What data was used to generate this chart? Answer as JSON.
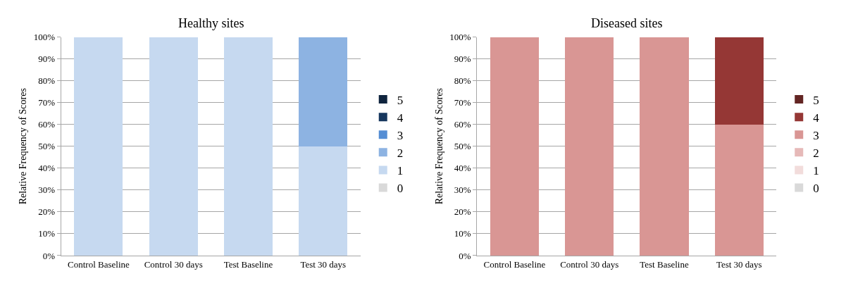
{
  "chart_data": [
    {
      "type": "bar",
      "title": "Healthy sites",
      "ylabel": "Relative Frequency of Scores",
      "categories": [
        "Control Baseline",
        "Control 30 days",
        "Test Baseline",
        "Test 30 days"
      ],
      "stacked": true,
      "legend": "right",
      "grid": "y",
      "ylim": [
        0,
        100
      ],
      "yticks": [
        {
          "value": 0,
          "label": "0%"
        },
        {
          "value": 10,
          "label": "10%"
        },
        {
          "value": 20,
          "label": "20%"
        },
        {
          "value": 30,
          "label": "30%"
        },
        {
          "value": 40,
          "label": "40%"
        },
        {
          "value": 50,
          "label": "50%"
        },
        {
          "value": 60,
          "label": "60%"
        },
        {
          "value": 70,
          "label": "70%"
        },
        {
          "value": 80,
          "label": "80%"
        },
        {
          "value": 90,
          "label": "90%"
        },
        {
          "value": 100,
          "label": "100%"
        }
      ],
      "series": [
        {
          "name": "0",
          "color": "#d9d9d9",
          "values": [
            0,
            0,
            0,
            0
          ]
        },
        {
          "name": "1",
          "color": "#c6d9f0",
          "values": [
            100,
            100,
            100,
            50
          ]
        },
        {
          "name": "2",
          "color": "#8db3e2",
          "values": [
            0,
            0,
            0,
            50
          ]
        },
        {
          "name": "3",
          "color": "#548dd4",
          "values": [
            0,
            0,
            0,
            0
          ]
        },
        {
          "name": "4",
          "color": "#17375e",
          "values": [
            0,
            0,
            0,
            0
          ]
        },
        {
          "name": "5",
          "color": "#0f243e",
          "values": [
            0,
            0,
            0,
            0
          ]
        }
      ]
    },
    {
      "type": "bar",
      "title": "Diseased sites",
      "ylabel": "Relative Frequency of Scores",
      "categories": [
        "Control Baseline",
        "Control 30 days",
        "Test Baseline",
        "Test 30 days"
      ],
      "stacked": true,
      "legend": "right",
      "grid": "y",
      "ylim": [
        0,
        100
      ],
      "yticks": [
        {
          "value": 0,
          "label": "0%"
        },
        {
          "value": 10,
          "label": "10%"
        },
        {
          "value": 20,
          "label": "20%"
        },
        {
          "value": 30,
          "label": "30%"
        },
        {
          "value": 40,
          "label": "40%"
        },
        {
          "value": 50,
          "label": "50%"
        },
        {
          "value": 60,
          "label": "60%"
        },
        {
          "value": 70,
          "label": "70%"
        },
        {
          "value": 80,
          "label": "80%"
        },
        {
          "value": 90,
          "label": "90%"
        },
        {
          "value": 100,
          "label": "100%"
        }
      ],
      "series": [
        {
          "name": "0",
          "color": "#d9d9d9",
          "values": [
            0,
            0,
            0,
            0
          ]
        },
        {
          "name": "1",
          "color": "#f2dcdb",
          "values": [
            0,
            0,
            0,
            0
          ]
        },
        {
          "name": "2",
          "color": "#e6b9b8",
          "values": [
            0,
            0,
            0,
            0
          ]
        },
        {
          "name": "3",
          "color": "#d99694",
          "values": [
            100,
            100,
            100,
            60
          ]
        },
        {
          "name": "4",
          "color": "#953735",
          "values": [
            0,
            0,
            0,
            40
          ]
        },
        {
          "name": "5",
          "color": "#632523",
          "values": [
            0,
            0,
            0,
            0
          ]
        }
      ]
    }
  ]
}
